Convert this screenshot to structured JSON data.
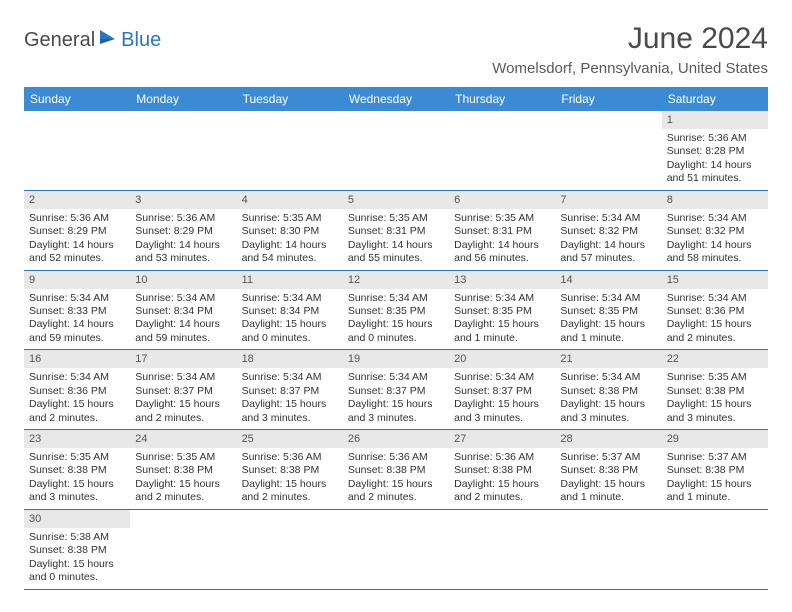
{
  "logo": {
    "textA": "General",
    "textB": "Blue"
  },
  "title": "June 2024",
  "location": "Womelsdorf, Pennsylvania, United States",
  "header_bg": "#3b8bd4",
  "header_fg": "#ffffff",
  "daynum_bg": "#e8e8e8",
  "divider_color": "#2e75c0",
  "columns": [
    "Sunday",
    "Monday",
    "Tuesday",
    "Wednesday",
    "Thursday",
    "Friday",
    "Saturday"
  ],
  "leading_blanks": 6,
  "days": [
    {
      "n": 1,
      "sunrise": "5:36 AM",
      "sunset": "8:28 PM",
      "daylight": "14 hours and 51 minutes."
    },
    {
      "n": 2,
      "sunrise": "5:36 AM",
      "sunset": "8:29 PM",
      "daylight": "14 hours and 52 minutes."
    },
    {
      "n": 3,
      "sunrise": "5:36 AM",
      "sunset": "8:29 PM",
      "daylight": "14 hours and 53 minutes."
    },
    {
      "n": 4,
      "sunrise": "5:35 AM",
      "sunset": "8:30 PM",
      "daylight": "14 hours and 54 minutes."
    },
    {
      "n": 5,
      "sunrise": "5:35 AM",
      "sunset": "8:31 PM",
      "daylight": "14 hours and 55 minutes."
    },
    {
      "n": 6,
      "sunrise": "5:35 AM",
      "sunset": "8:31 PM",
      "daylight": "14 hours and 56 minutes."
    },
    {
      "n": 7,
      "sunrise": "5:34 AM",
      "sunset": "8:32 PM",
      "daylight": "14 hours and 57 minutes."
    },
    {
      "n": 8,
      "sunrise": "5:34 AM",
      "sunset": "8:32 PM",
      "daylight": "14 hours and 58 minutes."
    },
    {
      "n": 9,
      "sunrise": "5:34 AM",
      "sunset": "8:33 PM",
      "daylight": "14 hours and 59 minutes."
    },
    {
      "n": 10,
      "sunrise": "5:34 AM",
      "sunset": "8:34 PM",
      "daylight": "14 hours and 59 minutes."
    },
    {
      "n": 11,
      "sunrise": "5:34 AM",
      "sunset": "8:34 PM",
      "daylight": "15 hours and 0 minutes."
    },
    {
      "n": 12,
      "sunrise": "5:34 AM",
      "sunset": "8:35 PM",
      "daylight": "15 hours and 0 minutes."
    },
    {
      "n": 13,
      "sunrise": "5:34 AM",
      "sunset": "8:35 PM",
      "daylight": "15 hours and 1 minute."
    },
    {
      "n": 14,
      "sunrise": "5:34 AM",
      "sunset": "8:35 PM",
      "daylight": "15 hours and 1 minute."
    },
    {
      "n": 15,
      "sunrise": "5:34 AM",
      "sunset": "8:36 PM",
      "daylight": "15 hours and 2 minutes."
    },
    {
      "n": 16,
      "sunrise": "5:34 AM",
      "sunset": "8:36 PM",
      "daylight": "15 hours and 2 minutes."
    },
    {
      "n": 17,
      "sunrise": "5:34 AM",
      "sunset": "8:37 PM",
      "daylight": "15 hours and 2 minutes."
    },
    {
      "n": 18,
      "sunrise": "5:34 AM",
      "sunset": "8:37 PM",
      "daylight": "15 hours and 3 minutes."
    },
    {
      "n": 19,
      "sunrise": "5:34 AM",
      "sunset": "8:37 PM",
      "daylight": "15 hours and 3 minutes."
    },
    {
      "n": 20,
      "sunrise": "5:34 AM",
      "sunset": "8:37 PM",
      "daylight": "15 hours and 3 minutes."
    },
    {
      "n": 21,
      "sunrise": "5:34 AM",
      "sunset": "8:38 PM",
      "daylight": "15 hours and 3 minutes."
    },
    {
      "n": 22,
      "sunrise": "5:35 AM",
      "sunset": "8:38 PM",
      "daylight": "15 hours and 3 minutes."
    },
    {
      "n": 23,
      "sunrise": "5:35 AM",
      "sunset": "8:38 PM",
      "daylight": "15 hours and 3 minutes."
    },
    {
      "n": 24,
      "sunrise": "5:35 AM",
      "sunset": "8:38 PM",
      "daylight": "15 hours and 2 minutes."
    },
    {
      "n": 25,
      "sunrise": "5:36 AM",
      "sunset": "8:38 PM",
      "daylight": "15 hours and 2 minutes."
    },
    {
      "n": 26,
      "sunrise": "5:36 AM",
      "sunset": "8:38 PM",
      "daylight": "15 hours and 2 minutes."
    },
    {
      "n": 27,
      "sunrise": "5:36 AM",
      "sunset": "8:38 PM",
      "daylight": "15 hours and 2 minutes."
    },
    {
      "n": 28,
      "sunrise": "5:37 AM",
      "sunset": "8:38 PM",
      "daylight": "15 hours and 1 minute."
    },
    {
      "n": 29,
      "sunrise": "5:37 AM",
      "sunset": "8:38 PM",
      "daylight": "15 hours and 1 minute."
    },
    {
      "n": 30,
      "sunrise": "5:38 AM",
      "sunset": "8:38 PM",
      "daylight": "15 hours and 0 minutes."
    }
  ],
  "labels": {
    "sunrise": "Sunrise:",
    "sunset": "Sunset:",
    "daylight": "Daylight:"
  }
}
